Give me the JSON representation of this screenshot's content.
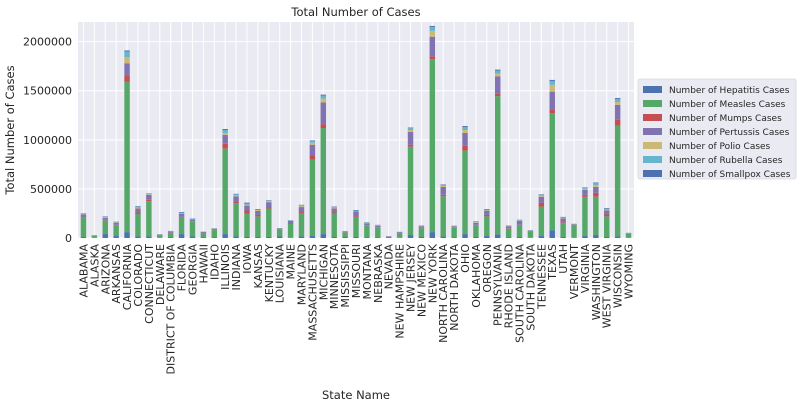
{
  "chart_data": {
    "type": "bar",
    "stacked": true,
    "title": "Total Number of Cases",
    "xlabel": "State Name",
    "ylabel": "Total Number of Cases",
    "ylim": [
      0,
      2200000
    ],
    "yticks": [
      0,
      500000,
      1000000,
      1500000,
      2000000
    ],
    "ytick_labels": [
      "0",
      "500000",
      "1000000",
      "1500000",
      "2000000"
    ],
    "grid": true,
    "legend_placement": "right",
    "categories": [
      "ALABAMA",
      "ALASKA",
      "ARIZONA",
      "ARKANSAS",
      "CALIFORNIA",
      "COLORADO",
      "CONNECTICUT",
      "DELAWARE",
      "DISTRICT OF COLUMBIA",
      "FLORIDA",
      "GEORGIA",
      "HAWAII",
      "IDAHO",
      "ILLINOIS",
      "INDIANA",
      "IOWA",
      "KANSAS",
      "KENTUCKY",
      "LOUISIANA",
      "MAINE",
      "MARYLAND",
      "MASSACHUSETTS",
      "MICHIGAN",
      "MINNESOTA",
      "MISSISSIPPI",
      "MISSOURI",
      "MONTANA",
      "NEBRASKA",
      "NEVADA",
      "NEW HAMPSHIRE",
      "NEW JERSEY",
      "NEW MEXICO",
      "NEW YORK",
      "NORTH CAROLINA",
      "NORTH DAKOTA",
      "OHIO",
      "OKLAHOMA",
      "OREGON",
      "PENNSYLVANIA",
      "RHODE ISLAND",
      "SOUTH CAROLINA",
      "SOUTH DAKOTA",
      "TENNESSEE",
      "TEXAS",
      "UTAH",
      "VERMONT",
      "VIRGINIA",
      "WASHINGTON",
      "WEST VIRGINIA",
      "WISCONSIN",
      "WYOMING"
    ],
    "series": [
      {
        "name": "Number of Hepatitis Cases",
        "color": "#4c72b0",
        "values": [
          10000,
          3000,
          40000,
          20000,
          60000,
          15000,
          15000,
          3000,
          5000,
          40000,
          15000,
          5000,
          5000,
          40000,
          15000,
          10000,
          10000,
          10000,
          15000,
          3000,
          15000,
          20000,
          40000,
          10000,
          10000,
          10000,
          5000,
          5000,
          5000,
          3000,
          30000,
          10000,
          60000,
          15000,
          5000,
          40000,
          10000,
          20000,
          35000,
          5000,
          10000,
          3000,
          20000,
          80000,
          10000,
          3000,
          20000,
          30000,
          10000,
          15000,
          3000
        ]
      },
      {
        "name": "Number of Measles Cases",
        "color": "#55a868",
        "values": [
          195000,
          20000,
          140000,
          110000,
          1530000,
          230000,
          360000,
          20000,
          45000,
          170000,
          150000,
          45000,
          75000,
          870000,
          340000,
          240000,
          210000,
          290000,
          70000,
          140000,
          240000,
          780000,
          1080000,
          240000,
          45000,
          200000,
          120000,
          100000,
          5000,
          45000,
          900000,
          90000,
          1760000,
          410000,
          100000,
          850000,
          120000,
          200000,
          1410000,
          90000,
          120000,
          60000,
          300000,
          1190000,
          140000,
          120000,
          400000,
          390000,
          210000,
          1130000,
          40000
        ]
      },
      {
        "name": "Number of Mumps Cases",
        "color": "#c44e52",
        "values": [
          5000,
          1000,
          5000,
          5000,
          60000,
          15000,
          15000,
          2000,
          3000,
          5000,
          5000,
          2000,
          3000,
          50000,
          20000,
          30000,
          15000,
          15000,
          2000,
          5000,
          10000,
          40000,
          40000,
          10000,
          2000,
          10000,
          5000,
          5000,
          1000,
          2000,
          20000,
          5000,
          30000,
          15000,
          5000,
          50000,
          5000,
          15000,
          30000,
          5000,
          5000,
          2000,
          40000,
          40000,
          10000,
          2000,
          20000,
          40000,
          20000,
          60000,
          2000
        ]
      },
      {
        "name": "Number of Pertussis Cases",
        "color": "#8172b2",
        "values": [
          30000,
          3000,
          20000,
          20000,
          130000,
          40000,
          50000,
          10000,
          15000,
          30000,
          20000,
          10000,
          10000,
          90000,
          50000,
          50000,
          40000,
          50000,
          10000,
          25000,
          50000,
          110000,
          220000,
          40000,
          10000,
          50000,
          20000,
          15000,
          5000,
          10000,
          130000,
          15000,
          200000,
          80000,
          10000,
          130000,
          20000,
          40000,
          170000,
          20000,
          40000,
          10000,
          60000,
          180000,
          40000,
          15000,
          50000,
          60000,
          40000,
          150000,
          5000
        ]
      },
      {
        "name": "Number of Polio Cases",
        "color": "#ccb974",
        "values": [
          3000,
          1000,
          5000,
          3000,
          60000,
          10000,
          5000,
          1000,
          1000,
          5000,
          3000,
          1000,
          3000,
          20000,
          10000,
          10000,
          10000,
          10000,
          2000,
          3000,
          10000,
          20000,
          40000,
          10000,
          2000,
          5000,
          5000,
          3000,
          1000,
          1000,
          20000,
          3000,
          60000,
          10000,
          2000,
          30000,
          5000,
          5000,
          30000,
          3000,
          3000,
          2000,
          10000,
          70000,
          5000,
          2000,
          10000,
          20000,
          10000,
          30000,
          1000
        ]
      },
      {
        "name": "Number of Rubella Cases",
        "color": "#64b5cd",
        "values": [
          2000,
          1000,
          5000,
          3000,
          60000,
          10000,
          5000,
          1000,
          2000,
          10000,
          3000,
          2000,
          3000,
          30000,
          10000,
          10000,
          5000,
          5000,
          1000,
          5000,
          10000,
          20000,
          30000,
          5000,
          1000,
          5000,
          5000,
          3000,
          1000,
          1000,
          20000,
          3000,
          40000,
          10000,
          2000,
          30000,
          5000,
          10000,
          30000,
          3000,
          5000,
          1000,
          10000,
          40000,
          5000,
          2000,
          10000,
          20000,
          10000,
          30000,
          1000
        ]
      },
      {
        "name": "Number of Smallpox Cases",
        "color": "#4c72b0",
        "values": [
          5000,
          1000,
          5000,
          5000,
          10000,
          5000,
          5000,
          1000,
          1000,
          5000,
          3000,
          1000,
          2000,
          10000,
          5000,
          10000,
          5000,
          5000,
          1000,
          2000,
          3000,
          5000,
          10000,
          5000,
          1000,
          5000,
          2000,
          3000,
          1000,
          1000,
          5000,
          2000,
          10000,
          5000,
          2000,
          10000,
          5000,
          5000,
          10000,
          2000,
          3000,
          2000,
          5000,
          10000,
          5000,
          1000,
          5000,
          5000,
          5000,
          10000,
          1000
        ]
      }
    ]
  }
}
